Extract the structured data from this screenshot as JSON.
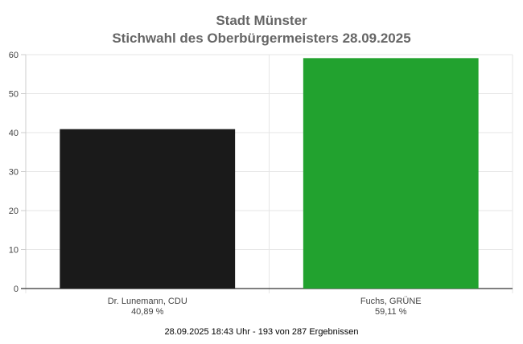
{
  "chart_data": {
    "type": "bar",
    "title": "Stadt Münster",
    "subtitle": "Stichwahl des Oberbürgermeisters 28.09.2025",
    "categories": [
      "Dr. Lunemann, CDU",
      "Fuchs, GRÜNE"
    ],
    "value_labels": [
      "40,89 %",
      "59,11 %"
    ],
    "values": [
      40.89,
      59.11
    ],
    "colors": [
      "#1a1a1a",
      "#22a22f"
    ],
    "ylim": [
      0,
      60
    ],
    "yticks": [
      0,
      10,
      20,
      30,
      40,
      50,
      60
    ],
    "grid": true,
    "legend": "none",
    "footer": "28.09.2025 18:43 Uhr - 193 von 287 Ergebnissen"
  }
}
